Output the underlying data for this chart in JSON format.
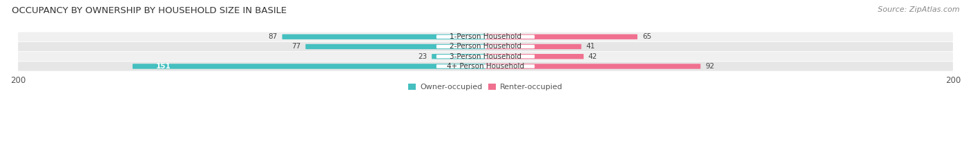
{
  "title": "OCCUPANCY BY OWNERSHIP BY HOUSEHOLD SIZE IN BASILE",
  "source": "Source: ZipAtlas.com",
  "categories": [
    "1-Person Household",
    "2-Person Household",
    "3-Person Household",
    "4+ Person Household"
  ],
  "owner_values": [
    87,
    77,
    23,
    151
  ],
  "renter_values": [
    65,
    41,
    42,
    92
  ],
  "owner_color": "#45BFBF",
  "renter_color": "#F07090",
  "row_bg_colors": [
    "#F0F0F0",
    "#E6E6E6"
  ],
  "x_max": 200,
  "title_fontsize": 9.5,
  "source_fontsize": 8,
  "label_fontsize": 7.5,
  "axis_label_fontsize": 8.5,
  "legend_fontsize": 8,
  "background_color": "#FFFFFF"
}
